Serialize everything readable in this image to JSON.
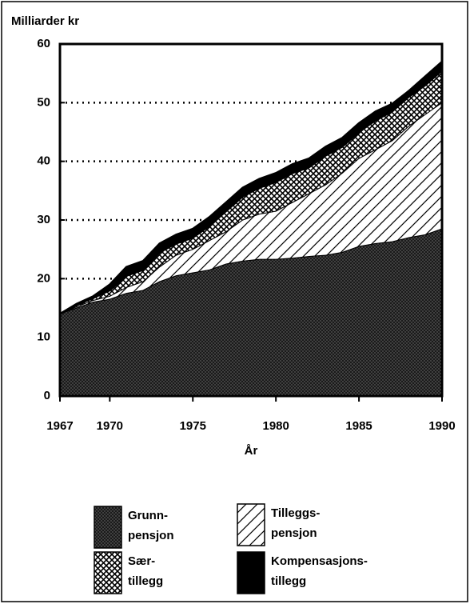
{
  "chart_data": {
    "type": "stacked-area",
    "ylabel": "Milliarder kr",
    "xlabel": "År",
    "x": [
      1967,
      1968,
      1969,
      1970,
      1971,
      1972,
      1973,
      1974,
      1975,
      1976,
      1977,
      1978,
      1979,
      1980,
      1981,
      1982,
      1983,
      1984,
      1985,
      1986,
      1987,
      1988,
      1989,
      1990
    ],
    "xlim": [
      1967,
      1990
    ],
    "xticks": [
      1967,
      1970,
      1975,
      1980,
      1985,
      1990
    ],
    "ylim": [
      0,
      60
    ],
    "yticks": [
      0,
      10,
      20,
      30,
      40,
      50,
      60
    ],
    "grid": true,
    "series": [
      {
        "name": "Grunn-\npensjon",
        "color": "#1a1a1a",
        "pattern": "dots",
        "values": [
          14,
          15,
          16,
          16.5,
          17.5,
          18,
          19.5,
          20.5,
          21,
          21.5,
          22.5,
          23,
          23.3,
          23.3,
          23.5,
          23.8,
          24,
          24.5,
          25.5,
          26,
          26.3,
          27,
          27.5,
          28.5
        ]
      },
      {
        "name": "Tilleggs-\npensjon",
        "color": "#000000",
        "pattern": "hatch",
        "values": [
          0,
          0.2,
          0.3,
          0.5,
          1,
          1.5,
          2.5,
          3.5,
          4,
          5,
          5.5,
          7,
          7.7,
          8.2,
          9.5,
          10.7,
          12,
          13.5,
          15,
          16,
          17.2,
          19,
          20.5,
          21.5
        ]
      },
      {
        "name": "Sær-\ntillegg",
        "color": "#000000",
        "pattern": "cross",
        "values": [
          0,
          0.3,
          0.4,
          1,
          2,
          2,
          2.5,
          2,
          2,
          2.5,
          3.5,
          4,
          4.5,
          5,
          5,
          4.5,
          5,
          4.5,
          4.5,
          5,
          5,
          5,
          5,
          5.5
        ]
      },
      {
        "name": "Kompensasjons-\ntillegg",
        "color": "#000000",
        "pattern": "solid",
        "values": [
          0,
          0.2,
          0.3,
          1,
          1.5,
          1.5,
          1.5,
          1.5,
          1.5,
          1.5,
          1.5,
          1.5,
          1.5,
          1.5,
          1.5,
          1.5,
          1.5,
          1.5,
          1.5,
          1.5,
          1.3,
          1,
          1.5,
          1.5
        ]
      }
    ]
  }
}
